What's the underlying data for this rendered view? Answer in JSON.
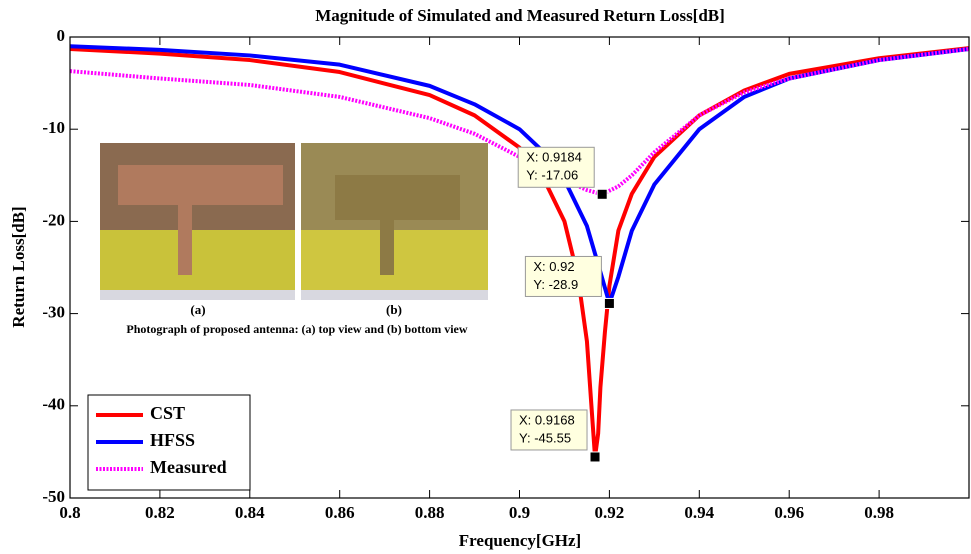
{
  "chart_data": {
    "type": "line",
    "title": "Magnitude of Simulated and Measured Return Loss[dB]",
    "xlabel": "Frequency[GHz]",
    "ylabel": "Return Loss[dB]",
    "xlim": [
      0.8,
      1.0
    ],
    "ylim": [
      -50,
      0
    ],
    "xticks": [
      0.8,
      0.82,
      0.84,
      0.86,
      0.88,
      0.9,
      0.92,
      0.94,
      0.96,
      0.98
    ],
    "yticks": [
      0,
      -10,
      -20,
      -30,
      -40,
      -50
    ],
    "legend": "lower left",
    "series": [
      {
        "name": "CST",
        "color": "#ff0000",
        "style": "solid",
        "x": [
          0.8,
          0.82,
          0.84,
          0.86,
          0.88,
          0.89,
          0.9,
          0.905,
          0.91,
          0.913,
          0.915,
          0.916,
          0.9168,
          0.9175,
          0.918,
          0.919,
          0.92,
          0.922,
          0.925,
          0.93,
          0.94,
          0.95,
          0.96,
          0.98,
          1.0
        ],
        "values": [
          -1.3,
          -1.8,
          -2.5,
          -3.8,
          -6.3,
          -8.5,
          -12,
          -15,
          -20,
          -26,
          -33,
          -40,
          -45.55,
          -43,
          -38,
          -32,
          -27,
          -21,
          -17,
          -13,
          -8.5,
          -5.8,
          -4,
          -2.3,
          -1.2
        ]
      },
      {
        "name": "HFSS",
        "color": "#0000ff",
        "style": "solid",
        "x": [
          0.8,
          0.82,
          0.84,
          0.86,
          0.88,
          0.89,
          0.9,
          0.905,
          0.91,
          0.915,
          0.918,
          0.92,
          0.922,
          0.925,
          0.93,
          0.94,
          0.95,
          0.96,
          0.98,
          1.0
        ],
        "values": [
          -1,
          -1.4,
          -2,
          -3,
          -5.3,
          -7.3,
          -10,
          -12.3,
          -15.5,
          -20.5,
          -25.5,
          -28.9,
          -26,
          -21,
          -16,
          -10,
          -6.5,
          -4.5,
          -2.5,
          -1.3
        ]
      },
      {
        "name": "Measured",
        "color": "#ff00ff",
        "style": "dotted",
        "x": [
          0.8,
          0.82,
          0.84,
          0.86,
          0.88,
          0.89,
          0.9,
          0.91,
          0.915,
          0.9184,
          0.922,
          0.925,
          0.93,
          0.94,
          0.95,
          0.96,
          0.98,
          1.0
        ],
        "values": [
          -3.7,
          -4.5,
          -5.2,
          -6.5,
          -8.8,
          -10.5,
          -13,
          -15.5,
          -16.6,
          -17.06,
          -16.2,
          -15,
          -12.5,
          -8.5,
          -6,
          -4.5,
          -2.5,
          -1.3
        ]
      }
    ],
    "annotations": [
      {
        "x": 0.9184,
        "y": -17.06,
        "label_x": "X: 0.9184",
        "label_y": "Y: -17.06"
      },
      {
        "x": 0.92,
        "y": -28.9,
        "label_x": "X: 0.92",
        "label_y": "Y: -28.9"
      },
      {
        "x": 0.9168,
        "y": -45.55,
        "label_x": "X: 0.9168",
        "label_y": "Y: -45.55"
      }
    ],
    "inset": {
      "labels": [
        "(a)",
        "(b)"
      ],
      "caption": "Photograph of proposed antenna: (a) top view and (b) bottom view"
    }
  }
}
